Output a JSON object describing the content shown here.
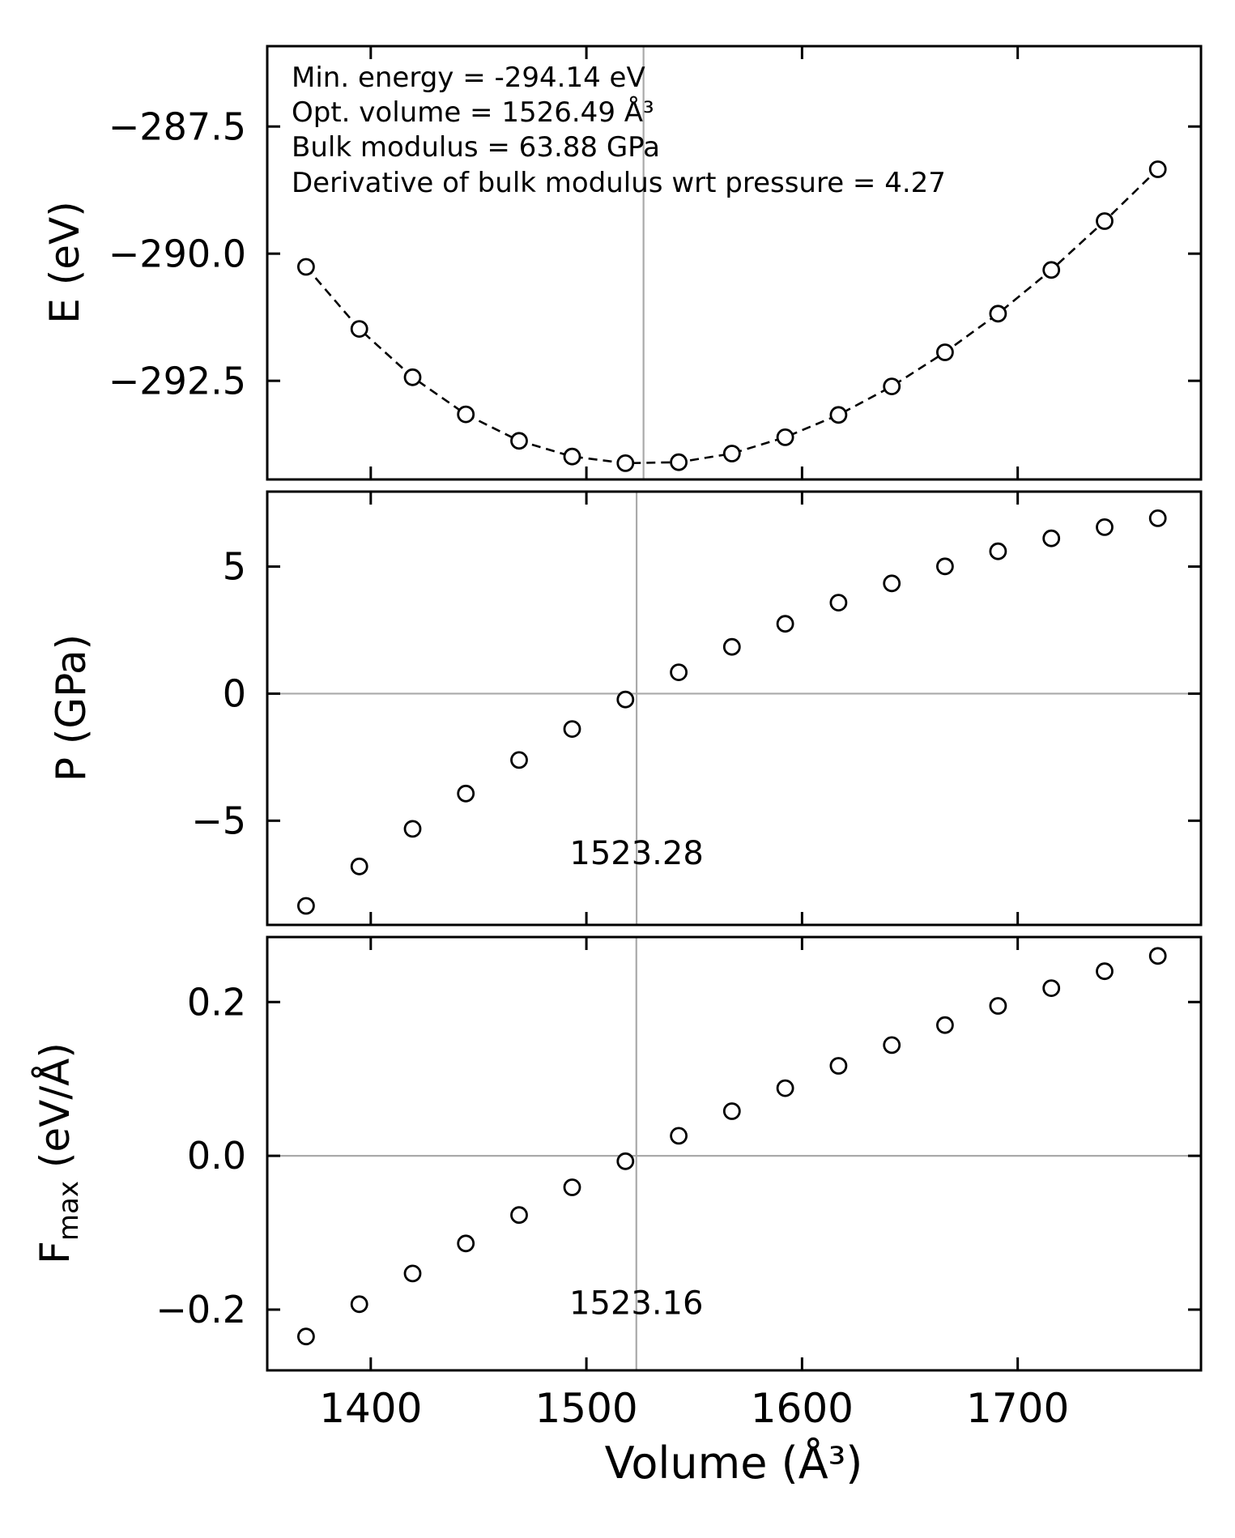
{
  "figure": {
    "background": "#ffffff",
    "ref_line_color": "#aaaaaa",
    "marker_color": "#000000",
    "fit_line_color": "#000000"
  },
  "annotations": {
    "lines": [
      "Min. energy = -294.14 eV",
      "Opt. volume = 1526.49 Å³",
      "Bulk modulus = 63.88 GPa",
      "Derivative of bulk modulus wrt pressure = 4.27"
    ]
  },
  "xlabel": "Volume (Å³)",
  "chart_data": [
    {
      "type": "scatter",
      "name": "energy-vs-volume",
      "ylabel": "E (eV)",
      "x": [
        1370.0,
        1394.7,
        1419.4,
        1444.1,
        1468.8,
        1493.4,
        1518.1,
        1542.8,
        1567.5,
        1592.2,
        1616.9,
        1641.6,
        1666.3,
        1690.9,
        1715.6,
        1740.3,
        1765.0
      ],
      "y": [
        -290.26,
        -291.48,
        -292.43,
        -293.16,
        -293.68,
        -293.99,
        -294.12,
        -294.1,
        -293.93,
        -293.61,
        -293.17,
        -292.61,
        -291.94,
        -291.18,
        -290.32,
        -289.36,
        -288.34
      ],
      "xlim": [
        1352,
        1785
      ],
      "ylim": [
        -294.44,
        -285.92
      ],
      "xticks": [
        1400,
        1500,
        1600,
        1700
      ],
      "xtick_labels": [
        "1400",
        "1500",
        "1600",
        "1700"
      ],
      "show_xtick_labels": false,
      "yticks": [
        -287.5,
        -290.0,
        -292.5
      ],
      "ytick_labels": [
        "−287.5",
        "−290.0",
        "−292.5"
      ],
      "hline": null,
      "vline": {
        "x": 1526.49,
        "label": null,
        "label_y": 0
      },
      "fit_dashed": true,
      "fit_params": {
        "min_energy_eV": -294.14,
        "opt_volume_A3": 1526.49,
        "bulk_modulus_GPa": 63.88,
        "bulk_modulus_pressure_derivative": 4.27
      }
    },
    {
      "type": "scatter",
      "name": "pressure-vs-volume",
      "ylabel": "P (GPa)",
      "x": [
        1370.0,
        1394.7,
        1419.4,
        1444.1,
        1468.8,
        1493.4,
        1518.1,
        1542.8,
        1567.5,
        1592.2,
        1616.9,
        1641.6,
        1666.3,
        1690.9,
        1715.6,
        1740.3,
        1765.0
      ],
      "y": [
        -8.35,
        -6.8,
        -5.32,
        -3.93,
        -2.61,
        -1.39,
        -0.23,
        0.84,
        1.84,
        2.75,
        3.58,
        4.34,
        5.01,
        5.6,
        6.11,
        6.55,
        6.9
      ],
      "xlim": [
        1352,
        1785
      ],
      "ylim": [
        -9.1,
        7.95
      ],
      "xticks": [
        1400,
        1500,
        1600,
        1700
      ],
      "xtick_labels": [
        "1400",
        "1500",
        "1600",
        "1700"
      ],
      "show_xtick_labels": false,
      "yticks": [
        5,
        0,
        -5
      ],
      "ytick_labels": [
        "5",
        "0",
        "−5"
      ],
      "hline": 0,
      "vline": {
        "x": 1523.28,
        "label": "1523.28",
        "label_y": 0.86
      },
      "fit_dashed": false
    },
    {
      "type": "scatter",
      "name": "fmax-vs-volume",
      "ylabel_parts": {
        "base": "F",
        "sub": "max",
        "rest": " (eV/Å)"
      },
      "x": [
        1370.0,
        1394.7,
        1419.4,
        1444.1,
        1468.8,
        1493.4,
        1518.1,
        1542.8,
        1567.5,
        1592.2,
        1616.9,
        1641.6,
        1666.3,
        1690.9,
        1715.6,
        1740.3,
        1765.0
      ],
      "y": [
        -0.235,
        -0.193,
        -0.153,
        -0.114,
        -0.077,
        -0.041,
        -0.007,
        0.026,
        0.058,
        0.088,
        0.117,
        0.144,
        0.17,
        0.195,
        0.218,
        0.24,
        0.26
      ],
      "xlim": [
        1352,
        1785
      ],
      "ylim": [
        -0.279,
        0.2845
      ],
      "xticks": [
        1400,
        1500,
        1600,
        1700
      ],
      "xtick_labels": [
        "1400",
        "1500",
        "1600",
        "1700"
      ],
      "show_xtick_labels": true,
      "yticks": [
        0.2,
        0.0,
        -0.2
      ],
      "ytick_labels": [
        "0.2",
        "0.0",
        "−0.2"
      ],
      "hline": 0,
      "vline": {
        "x": 1523.16,
        "label": "1523.16",
        "label_y": 0.87
      },
      "fit_dashed": false
    }
  ]
}
